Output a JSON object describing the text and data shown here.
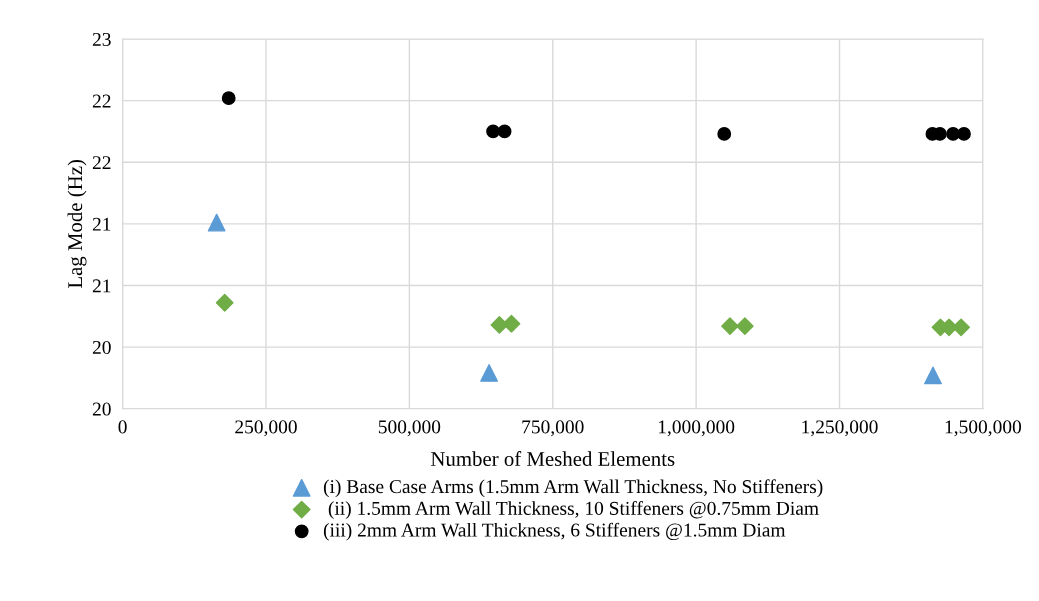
{
  "chart_data": {
    "type": "scatter",
    "xlabel": "Number of Meshed Elements",
    "ylabel": "Lag Mode (Hz)",
    "xlim": [
      0,
      1500000
    ],
    "xticks": [
      {
        "value": 0,
        "label": "0"
      },
      {
        "value": 250000,
        "label": "250,000"
      },
      {
        "value": 500000,
        "label": "500,000"
      },
      {
        "value": 750000,
        "label": "750,000"
      },
      {
        "value": 1000000,
        "label": "1,000,000"
      },
      {
        "value": 1250000,
        "label": "1,250,000"
      },
      {
        "value": 1500000,
        "label": "1,500,000"
      }
    ],
    "ylim": [
      20,
      23
    ],
    "yticks": [
      {
        "value": 20,
        "label": "20"
      },
      {
        "value": 20.5,
        "label": "20"
      },
      {
        "value": 21,
        "label": "21"
      },
      {
        "value": 21.5,
        "label": "21"
      },
      {
        "value": 22,
        "label": "22"
      },
      {
        "value": 22.5,
        "label": "22"
      },
      {
        "value": 23,
        "label": "23"
      }
    ],
    "grid": true,
    "legend": "bottom",
    "series": [
      {
        "name": "(i) Base Case Arms (1.5mm Arm Wall Thickness, No Stiffeners)",
        "color": "#5b9bd5",
        "marker": "triangle",
        "x": [
          164000,
          639000,
          1413000
        ],
        "values": [
          21.51,
          20.29,
          20.27
        ]
      },
      {
        "name": " (ii) 1.5mm Arm Wall Thickness, 10 Stiffeners @0.75mm Diam",
        "color": "#70ad47",
        "marker": "diamond",
        "x": [
          178000,
          657000,
          678000,
          1059000,
          1085000,
          1426000,
          1441000,
          1462000
        ],
        "values": [
          20.86,
          20.68,
          20.69,
          20.67,
          20.67,
          20.66,
          20.66,
          20.66
        ]
      },
      {
        "name": "(iii) 2mm Arm Wall Thickness, 6 Stiffeners @1.5mm Diam",
        "color": "#000000",
        "marker": "circle",
        "x": [
          185000,
          646000,
          666000,
          1049000,
          1412000,
          1425000,
          1448000,
          1467000
        ],
        "values": [
          22.52,
          22.25,
          22.25,
          22.23,
          22.23,
          22.23,
          22.23,
          22.23
        ]
      }
    ]
  }
}
